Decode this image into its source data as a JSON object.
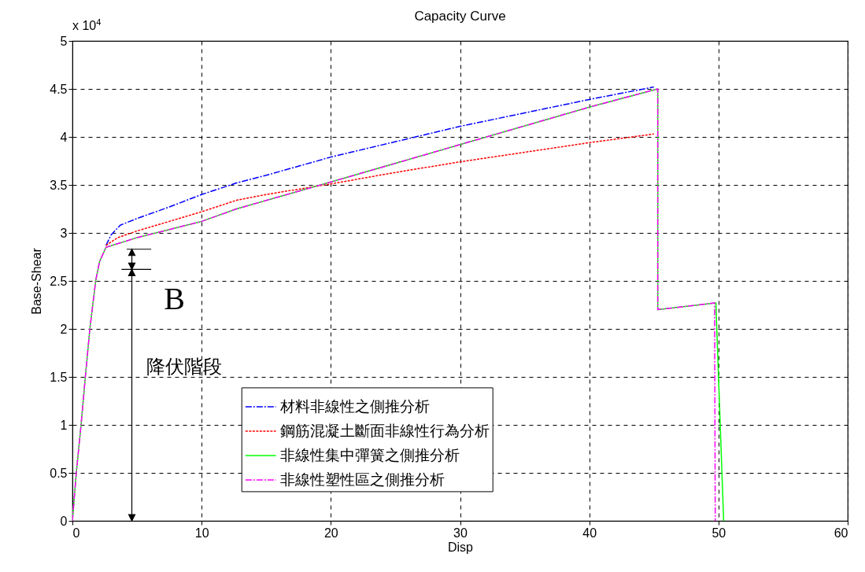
{
  "chart_data": {
    "type": "line",
    "title": "Capacity Curve",
    "xlabel": "Disp",
    "ylabel": "Base-Shear",
    "xlim": [
      0,
      60
    ],
    "xticks": [
      0,
      10,
      20,
      30,
      40,
      50,
      60
    ],
    "ylim": [
      0,
      5
    ],
    "yticks": [
      0,
      0.5,
      1,
      1.5,
      2,
      2.5,
      3,
      3.5,
      4,
      4.5,
      5
    ],
    "grid": true,
    "legend": "bottom",
    "annotations": [
      "x 10$^{4}$",
      "B",
      "降伏階段"
    ],
    "series": [
      {
        "name": "材料非線性之側推分析",
        "color": "#0000ff",
        "line_style": "dashed",
        "x": [
          2.6,
          3.0,
          3.7,
          5,
          7.5,
          10,
          12.7,
          15,
          20,
          25,
          30,
          35,
          40,
          45
        ],
        "values": [
          2.87,
          2.98,
          3.08,
          3.15,
          3.27,
          3.4,
          3.52,
          3.6,
          3.79,
          3.95,
          4.11,
          4.25,
          4.39,
          4.52
        ]
      },
      {
        "name": "鋼筋混凝土斷面非線性行為分析",
        "color": "#ff0000",
        "line_style": "dotted",
        "x": [
          2.6,
          3.5,
          5,
          7.5,
          10,
          12.7,
          15,
          20,
          25,
          30,
          35,
          40,
          45
        ],
        "values": [
          2.87,
          2.95,
          3.02,
          3.12,
          3.22,
          3.34,
          3.4,
          3.51,
          3.63,
          3.74,
          3.84,
          3.94,
          4.03
        ]
      },
      {
        "name": "非線性集中彈簧之側推分析",
        "color": "#00ff00",
        "line_style": "solid",
        "x": [
          0,
          0.3,
          0.67,
          1.0,
          1.35,
          1.8,
          2.1,
          2.6,
          5,
          10,
          12.7,
          20,
          30,
          40,
          45.3,
          45.3,
          49.8,
          50.4
        ],
        "values": [
          0,
          0.5,
          1.0,
          1.5,
          2.0,
          2.5,
          2.7,
          2.85,
          2.95,
          3.12,
          3.25,
          3.53,
          3.92,
          4.31,
          4.5,
          2.2,
          2.27,
          0
        ]
      },
      {
        "name": "非線性塑性區之側推分析",
        "color": "#ff00ff",
        "line_style": "dashed",
        "x": [
          0,
          0.3,
          0.67,
          1.0,
          1.35,
          1.8,
          2.1,
          2.6,
          5,
          10,
          12.7,
          20,
          30,
          40,
          45.3,
          45.3,
          49.7,
          49.75
        ],
        "values": [
          0,
          0.5,
          1.0,
          1.5,
          2.0,
          2.5,
          2.7,
          2.85,
          2.95,
          3.12,
          3.25,
          3.53,
          3.92,
          4.31,
          4.5,
          2.2,
          2.27,
          0
        ]
      }
    ]
  }
}
